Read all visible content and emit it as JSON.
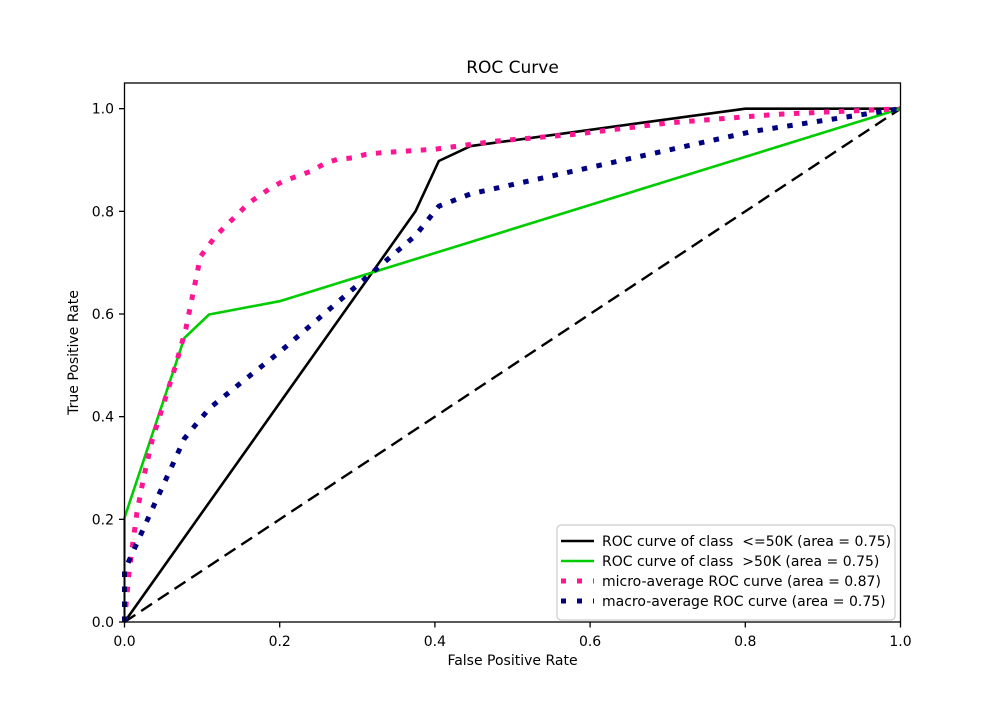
{
  "chart_data": {
    "type": "line",
    "title": "ROC Curve",
    "xlabel": "False Positive Rate",
    "ylabel": "True Positive Rate",
    "xlim": [
      0,
      1.0
    ],
    "ylim": [
      0,
      1.05
    ],
    "grid": false,
    "background": "#ffffff",
    "axes_color": "#000000",
    "xtick_values": [
      0.0,
      0.2,
      0.4,
      0.6,
      0.8,
      1.0
    ],
    "xtick_labels": [
      "0.0",
      "0.2",
      "0.4",
      "0.6",
      "0.8",
      "1.0"
    ],
    "ytick_values": [
      0.0,
      0.2,
      0.4,
      0.6,
      0.8,
      1.0
    ],
    "ytick_labels": [
      "0.0",
      "0.2",
      "0.4",
      "0.6",
      "0.8",
      "1.0"
    ],
    "legend": {
      "position": "lower right",
      "border_color": "#cccccc",
      "background": "#ffffff"
    },
    "series": [
      {
        "id": "roc-curve-class-le50k",
        "name": "ROC curve of class  <=50K (area = 0.75)",
        "area": 0.75,
        "color": "#000000",
        "linestyle": "solid",
        "linewidth": 2.6,
        "points": [
          [
            0,
            0
          ],
          [
            0.375,
            0.8
          ],
          [
            0.405,
            0.898
          ],
          [
            0.446,
            0.927
          ],
          [
            0.8,
            1.0
          ],
          [
            1,
            1
          ]
        ]
      },
      {
        "id": "roc-curve-class-gt50k",
        "name": "ROC curve of class  >50K (area = 0.75)",
        "area": 0.75,
        "color": "#00CC00",
        "linestyle": "solid",
        "linewidth": 2.6,
        "points": [
          [
            0,
            0
          ],
          [
            0,
            0.203
          ],
          [
            0.077,
            0.553
          ],
          [
            0.109,
            0.599
          ],
          [
            0.2,
            0.625
          ],
          [
            1,
            1
          ]
        ]
      },
      {
        "id": "micro-average-roc-curve",
        "name": "micro-average ROC curve (area = 0.87)",
        "area": 0.87,
        "color": "#FF1493",
        "linestyle": "dotted",
        "linewidth": 5,
        "points": [
          [
            0,
            0
          ],
          [
            0.003,
            0.05
          ],
          [
            0.006,
            0.1
          ],
          [
            0.016,
            0.213
          ],
          [
            0.025,
            0.284
          ],
          [
            0.036,
            0.356
          ],
          [
            0.051,
            0.428
          ],
          [
            0.066,
            0.5
          ],
          [
            0.079,
            0.571
          ],
          [
            0.089,
            0.646
          ],
          [
            0.098,
            0.712
          ],
          [
            0.117,
            0.751
          ],
          [
            0.132,
            0.774
          ],
          [
            0.145,
            0.793
          ],
          [
            0.16,
            0.816
          ],
          [
            0.188,
            0.845
          ],
          [
            0.205,
            0.859
          ],
          [
            0.222,
            0.868
          ],
          [
            0.24,
            0.878
          ],
          [
            0.259,
            0.894
          ],
          [
            0.274,
            0.901
          ],
          [
            0.293,
            0.904
          ],
          [
            0.311,
            0.911
          ],
          [
            0.33,
            0.914
          ],
          [
            0.4,
            0.921
          ],
          [
            0.48,
            0.937
          ],
          [
            0.58,
            0.95
          ],
          [
            0.7,
            0.972
          ],
          [
            0.841,
            0.989
          ],
          [
            1,
            1
          ]
        ]
      },
      {
        "id": "macro-average-roc-curve",
        "name": "macro-average ROC curve (area = 0.75)",
        "area": 0.75,
        "color": "#000080",
        "linestyle": "dotted",
        "linewidth": 5,
        "points": [
          [
            0,
            0
          ],
          [
            0,
            0.1
          ],
          [
            0.02,
            0.167
          ],
          [
            0.04,
            0.234
          ],
          [
            0.06,
            0.3
          ],
          [
            0.077,
            0.357
          ],
          [
            0.09,
            0.381
          ],
          [
            0.11,
            0.417
          ],
          [
            0.15,
            0.466
          ],
          [
            0.2,
            0.526
          ],
          [
            0.25,
            0.591
          ],
          [
            0.3,
            0.656
          ],
          [
            0.375,
            0.753
          ],
          [
            0.405,
            0.81
          ],
          [
            0.446,
            0.834
          ],
          [
            0.81,
            0.956
          ],
          [
            1,
            1
          ]
        ]
      }
    ],
    "reference_line": {
      "id": "chance-diagonal",
      "color": "#000000",
      "linestyle": "dashed",
      "linewidth": 2.4,
      "points": [
        [
          0,
          0
        ],
        [
          1,
          1
        ]
      ]
    }
  }
}
